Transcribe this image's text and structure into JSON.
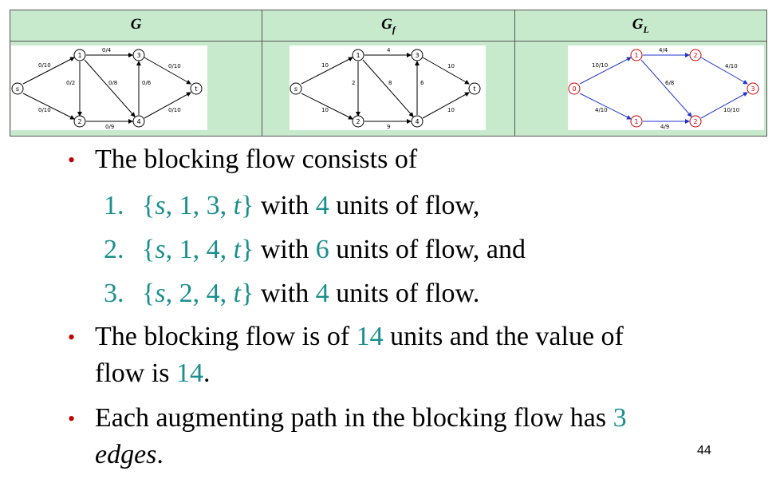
{
  "table": {
    "headers": [
      {
        "base": "G",
        "sub": ""
      },
      {
        "base": "G",
        "sub": "f"
      },
      {
        "base": "G",
        "sub": "L"
      }
    ]
  },
  "graphs": {
    "g": {
      "nodes": [
        "s",
        "1",
        "2",
        "3",
        "4",
        "t"
      ],
      "edges": [
        {
          "from": "s",
          "to": "1",
          "label": "0/10"
        },
        {
          "from": "s",
          "to": "2",
          "label": "0/10"
        },
        {
          "from": "1",
          "to": "3",
          "label": "0/4"
        },
        {
          "from": "1",
          "to": "2",
          "label": "0/2"
        },
        {
          "from": "1",
          "to": "4",
          "label": "0/8"
        },
        {
          "from": "2",
          "to": "4",
          "label": "0/9"
        },
        {
          "from": "4",
          "to": "3",
          "label": "0/6"
        },
        {
          "from": "3",
          "to": "t",
          "label": "0/10"
        },
        {
          "from": "4",
          "to": "t",
          "label": "0/10"
        }
      ]
    },
    "gf": {
      "nodes": [
        "s",
        "1",
        "2",
        "3",
        "4",
        "t"
      ],
      "edges": [
        {
          "from": "s",
          "to": "1",
          "label": "10"
        },
        {
          "from": "s",
          "to": "2",
          "label": "10"
        },
        {
          "from": "1",
          "to": "3",
          "label": "4"
        },
        {
          "from": "1",
          "to": "2",
          "label": "2"
        },
        {
          "from": "1",
          "to": "4",
          "label": "8"
        },
        {
          "from": "2",
          "to": "4",
          "label": "9"
        },
        {
          "from": "4",
          "to": "3",
          "label": "6"
        },
        {
          "from": "3",
          "to": "t",
          "label": "10"
        },
        {
          "from": "4",
          "to": "t",
          "label": "10"
        }
      ]
    },
    "gl": {
      "nodes": [
        "0",
        "1",
        "1",
        "2",
        "2",
        "3"
      ],
      "edges": [
        {
          "from": "0",
          "to": "1",
          "label": "10/10"
        },
        {
          "from": "0",
          "to": "1b",
          "label": "4/10"
        },
        {
          "from": "1",
          "to": "2",
          "label": "4/4"
        },
        {
          "from": "1",
          "to": "2b",
          "label": "6/8"
        },
        {
          "from": "1b",
          "to": "2b",
          "label": "4/9"
        },
        {
          "from": "2",
          "to": "3",
          "label": "4/10"
        },
        {
          "from": "2b",
          "to": "3",
          "label": "10/10"
        }
      ]
    }
  },
  "bullets": {
    "b1": "The blocking flow consists of",
    "items": [
      {
        "index": "1.",
        "path": "{s, 1, 3, t}",
        "pre": " with ",
        "amount": "4",
        "post": " units of flow,"
      },
      {
        "index": "2.",
        "path": "{s, 1, 4, t}",
        "pre": " with ",
        "amount": "6",
        "post": " units of flow, and"
      },
      {
        "index": "3.",
        "path": "{s, 2, 4, t}",
        "pre": " with ",
        "amount": "4",
        "post": " units of flow."
      }
    ],
    "b2_pre": "The blocking flow is of ",
    "b2_num": "14",
    "b2_mid": " units and the value of",
    "b2_line2_pre": "flow is ",
    "b2_line2_num": "14",
    "b2_line2_post": ".",
    "b3_pre": "Each augmenting path in the blocking flow has ",
    "b3_num": "3",
    "b3_line2": "edges",
    "b3_line2_post": "."
  },
  "page_number": "44",
  "colors": {
    "header_bg": "#c7eacd",
    "bullet": "#c00000",
    "accent": "#1b8f8f",
    "level_edge": "#2233cc",
    "level_node": "#cc0000"
  }
}
